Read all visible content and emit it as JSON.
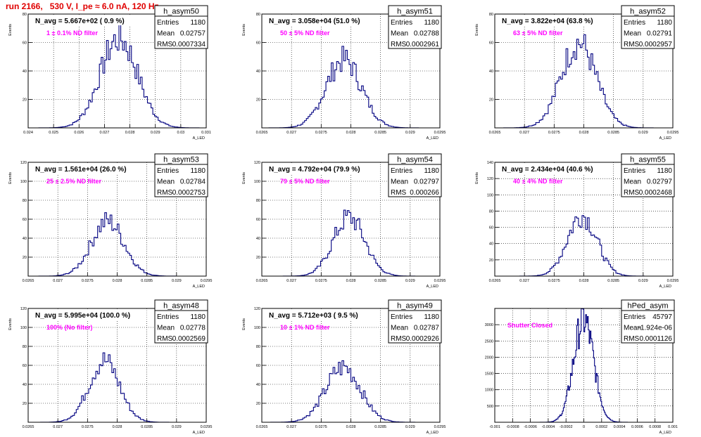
{
  "page_title": "run 2166,   530 V, I_pe ≈ 6.0 nA, 120 Hz",
  "colors": {
    "title": "#e00000",
    "annotation": "#ff00ff",
    "histogram": "#000080",
    "grid": "#000000"
  },
  "chart_data": [
    {
      "type": "bar",
      "name": "h_asym50",
      "title": "N_avg = 5.667e+02 ( 0.9 %)",
      "annotation": "1 ± 0.1% ND filter",
      "xlabel": "A_LED",
      "ylabel": "Events",
      "xlim": [
        0.024,
        0.031
      ],
      "ylim": [
        0,
        80
      ],
      "xticks": [
        "0.024",
        "0.025",
        "0.026",
        "0.027",
        "0.028",
        "0.029",
        "0.03",
        "0.031"
      ],
      "yticks": [
        "20",
        "40",
        "60",
        "80"
      ],
      "stats": [
        [
          "Entries",
          "1180"
        ],
        [
          "Mean",
          "0.02757"
        ],
        [
          "RMS",
          "0.0007334"
        ]
      ],
      "mean": 0.02757,
      "rms": 0.0007334,
      "peak": 63,
      "nbins": 100
    },
    {
      "type": "bar",
      "name": "h_asym51",
      "title": "N_avg = 3.058e+04 (51.0 %)",
      "annotation": "50 ± 5% ND filter",
      "xlabel": "A_LED",
      "ylabel": "Events",
      "xlim": [
        0.0265,
        0.0295
      ],
      "ylim": [
        0,
        80
      ],
      "xticks": [
        "0.0265",
        "0.027",
        "0.0275",
        "0.028",
        "0.0285",
        "0.029",
        "0.0295"
      ],
      "yticks": [
        "20",
        "40",
        "60",
        "80"
      ],
      "stats": [
        [
          "Entries",
          "1180"
        ],
        [
          "Mean",
          "0.02788"
        ],
        [
          "RMS",
          "0.0002961"
        ]
      ],
      "mean": 0.02788,
      "rms": 0.0002961,
      "peak": 48,
      "nbins": 100
    },
    {
      "type": "bar",
      "name": "h_asym52",
      "title": "N_avg = 3.822e+04 (63.8 %)",
      "annotation": "63 ± 5% ND filter",
      "xlabel": "A_LED",
      "ylabel": "Events",
      "xlim": [
        0.0265,
        0.0295
      ],
      "ylim": [
        0,
        80
      ],
      "xticks": [
        "0.0265",
        "0.027",
        "0.0275",
        "0.028",
        "0.0285",
        "0.029",
        "0.0295"
      ],
      "yticks": [
        "20",
        "40",
        "60",
        "80"
      ],
      "stats": [
        [
          "Entries",
          "1180"
        ],
        [
          "Mean",
          "0.02791"
        ],
        [
          "RMS",
          "0.0002957"
        ]
      ],
      "mean": 0.02791,
      "rms": 0.0002957,
      "peak": 60,
      "nbins": 100
    },
    {
      "type": "bar",
      "name": "h_asym53",
      "title": "N_avg = 1.561e+04 (26.0 %)",
      "annotation": "25 ± 2.5% ND filter",
      "xlabel": "A_LED",
      "ylabel": "Events",
      "xlim": [
        0.0265,
        0.0295
      ],
      "ylim": [
        0,
        120
      ],
      "xticks": [
        "0.0265",
        "0.027",
        "0.0275",
        "0.028",
        "0.0285",
        "0.029",
        "0.0295"
      ],
      "yticks": [
        "20",
        "40",
        "60",
        "80",
        "100",
        "120"
      ],
      "stats": [
        [
          "Entries",
          "1180"
        ],
        [
          "Mean",
          "0.02784"
        ],
        [
          "RMS",
          "0.0002753"
        ]
      ],
      "mean": 0.02784,
      "rms": 0.0002753,
      "peak": 58,
      "nbins": 100
    },
    {
      "type": "bar",
      "name": "h_asym54",
      "title": "N_avg = 4.792e+04 (79.9 %)",
      "annotation": "79 ± 5% ND filter",
      "xlabel": "A_LED",
      "ylabel": "Events",
      "xlim": [
        0.0265,
        0.0295
      ],
      "ylim": [
        0,
        120
      ],
      "xticks": [
        "0.0265",
        "0.027",
        "0.0275",
        "0.028",
        "0.0285",
        "0.029",
        "0.0295"
      ],
      "yticks": [
        "20",
        "40",
        "60",
        "80",
        "100",
        "120"
      ],
      "stats": [
        [
          "Entries",
          "1180"
        ],
        [
          "Mean",
          "0.02797"
        ],
        [
          "RMS",
          "0.000266"
        ]
      ],
      "mean": 0.02797,
      "rms": 0.000266,
      "peak": 62,
      "nbins": 100
    },
    {
      "type": "bar",
      "name": "h_asym55",
      "title": "N_avg = 2.434e+04 (40.6 %)",
      "annotation": "40 ± 4% ND filter",
      "xlabel": "A_LED",
      "ylabel": "Events",
      "xlim": [
        0.0265,
        0.0295
      ],
      "ylim": [
        0,
        140
      ],
      "xticks": [
        "0.0265",
        "0.027",
        "0.0275",
        "0.028",
        "0.0285",
        "0.029",
        "0.0295"
      ],
      "yticks": [
        "20",
        "40",
        "60",
        "80",
        "100",
        "120",
        "140"
      ],
      "stats": [
        [
          "Entries",
          "1180"
        ],
        [
          "Mean",
          "0.02797"
        ],
        [
          "RMS",
          "0.0002468"
        ]
      ],
      "mean": 0.02797,
      "rms": 0.0002468,
      "peak": 75,
      "nbins": 100
    },
    {
      "type": "bar",
      "name": "h_asym48",
      "title": "N_avg = 5.995e+04 (100.0 %)",
      "annotation": "100% (No filter)",
      "xlabel": "A_LED",
      "ylabel": "Events",
      "xlim": [
        0.0265,
        0.0295
      ],
      "ylim": [
        0,
        120
      ],
      "xticks": [
        "0.0265",
        "0.027",
        "0.0275",
        "0.028",
        "0.0285",
        "0.029",
        "0.0295"
      ],
      "yticks": [
        "20",
        "40",
        "60",
        "80",
        "100",
        "120"
      ],
      "stats": [
        [
          "Entries",
          "1180"
        ],
        [
          "Mean",
          "0.02778"
        ],
        [
          "RMS",
          "0.0002569"
        ]
      ],
      "mean": 0.02778,
      "rms": 0.0002569,
      "peak": 65,
      "nbins": 100
    },
    {
      "type": "bar",
      "name": "h_asym49",
      "title": "N_avg = 5.712e+03 ( 9.5 %)",
      "annotation": "10 ± 1% ND filter",
      "xlabel": "A_LED",
      "ylabel": "Events",
      "xlim": [
        0.0265,
        0.0295
      ],
      "ylim": [
        0,
        120
      ],
      "xticks": [
        "0.0265",
        "0.027",
        "0.0275",
        "0.028",
        "0.0285",
        "0.029",
        "0.0295"
      ],
      "yticks": [
        "20",
        "40",
        "60",
        "80",
        "100",
        "120"
      ],
      "stats": [
        [
          "Entries",
          "1180"
        ],
        [
          "Mean",
          "0.02787"
        ],
        [
          "RMS",
          "0.0002926"
        ]
      ],
      "mean": 0.02787,
      "rms": 0.0002926,
      "peak": 58,
      "nbins": 100
    },
    {
      "type": "bar",
      "name": "hPed_asym",
      "title": "",
      "annotation": "Shutter Closed",
      "xlabel": "A_LED",
      "ylabel": "",
      "xlim": [
        -0.001,
        0.001
      ],
      "ylim": [
        0,
        3500
      ],
      "xticks": [
        "-0.001",
        "-0.0008",
        "-0.0006",
        "-0.0004",
        "-0.0002",
        "0",
        "0.0002",
        "0.0004",
        "0.0006",
        "0.0008",
        "0.001"
      ],
      "yticks": [
        "500",
        "1000",
        "1500",
        "2000",
        "2500",
        "3000"
      ],
      "stats": [
        [
          "Entries",
          "45797"
        ],
        [
          "Mean",
          "-1.924e-06"
        ],
        [
          "RMS",
          "0.0001126"
        ]
      ],
      "mean": -1.924e-06,
      "rms": 0.0001126,
      "peak": 3150,
      "nbins": 200
    }
  ]
}
